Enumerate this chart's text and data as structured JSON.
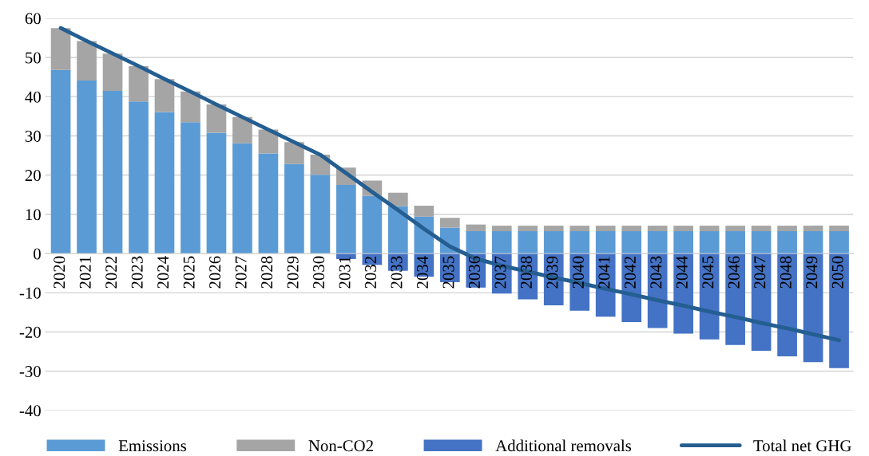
{
  "chart_data": {
    "type": "bar",
    "stacked": true,
    "categories": [
      "2020",
      "2021",
      "2022",
      "2023",
      "2024",
      "2025",
      "2026",
      "2027",
      "2028",
      "2029",
      "2030",
      "2031",
      "2032",
      "2033",
      "2034",
      "2035",
      "2036",
      "2037",
      "2038",
      "2039",
      "2040",
      "2041",
      "2042",
      "2043",
      "2044",
      "2045",
      "2046",
      "2047",
      "2048",
      "2049",
      "2050"
    ],
    "series": [
      {
        "name": "Emissions",
        "color": "#5b9bd5",
        "values": [
          46.8,
          44.1,
          41.5,
          38.8,
          36.1,
          33.5,
          30.8,
          28.1,
          25.5,
          22.8,
          20.1,
          17.5,
          14.7,
          12.1,
          9.4,
          6.6,
          5.7,
          5.7,
          5.7,
          5.7,
          5.7,
          5.7,
          5.7,
          5.7,
          5.7,
          5.7,
          5.7,
          5.7,
          5.7,
          5.7,
          5.7
        ]
      },
      {
        "name": "Non-CO2",
        "color": "#a5a5a5",
        "values": [
          10.7,
          10.1,
          9.5,
          9.0,
          8.4,
          7.8,
          7.2,
          6.7,
          6.1,
          5.6,
          5.1,
          4.4,
          3.9,
          3.4,
          2.8,
          2.5,
          1.7,
          1.4,
          1.4,
          1.4,
          1.4,
          1.4,
          1.4,
          1.4,
          1.4,
          1.4,
          1.4,
          1.4,
          1.4,
          1.4,
          1.4
        ]
      },
      {
        "name": "Additional removals",
        "color": "#4472c4",
        "values": [
          0,
          0,
          0,
          0,
          0,
          0,
          0,
          0,
          0,
          0,
          0,
          -1.4,
          -2.9,
          -4.4,
          -5.9,
          -7.3,
          -8.7,
          -10.2,
          -11.7,
          -13.2,
          -14.6,
          -16.1,
          -17.5,
          -19.0,
          -20.4,
          -21.9,
          -23.3,
          -24.8,
          -26.2,
          -27.7,
          -29.2
        ]
      },
      {
        "name": "Total net GHG",
        "type": "line",
        "color": "#255e91",
        "values": [
          57.5,
          54.2,
          51.0,
          47.8,
          44.5,
          41.3,
          38.0,
          34.8,
          31.6,
          28.4,
          25.2,
          20.5,
          15.7,
          11.1,
          6.3,
          1.8,
          -1.3,
          -3.1,
          -4.6,
          -6.1,
          -7.5,
          -9.0,
          -10.4,
          -11.9,
          -13.3,
          -14.8,
          -16.2,
          -17.7,
          -19.1,
          -20.6,
          -22.1
        ]
      }
    ],
    "ylim": [
      -40,
      60
    ],
    "yticks": [
      -40,
      -30,
      -20,
      -10,
      0,
      10,
      20,
      30,
      40,
      50,
      60
    ],
    "grid": "y",
    "legend": "bottom"
  }
}
